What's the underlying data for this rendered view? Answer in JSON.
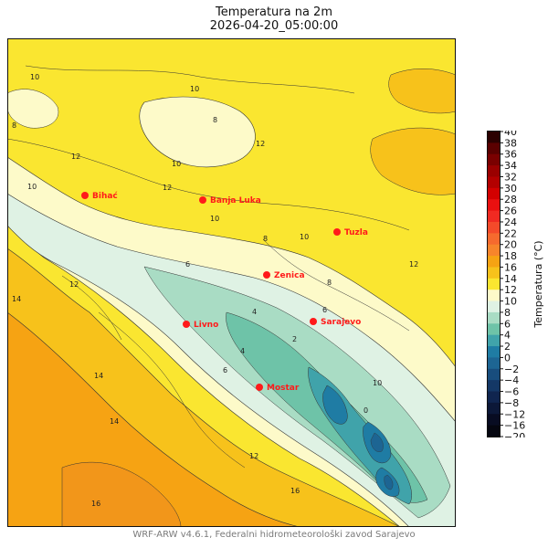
{
  "title": "Temperatura na 2m",
  "subtitle": "2026-04-20_05:00:00",
  "credit": "WRF-ARW v4.6.1, Federalni hidrometeorološki zavod Sarajevo",
  "colorbar": {
    "label": "Temperatura (°C)",
    "ticks": [
      "40",
      "38",
      "36",
      "34",
      "32",
      "30",
      "28",
      "26",
      "24",
      "22",
      "20",
      "18",
      "16",
      "14",
      "12",
      "10",
      "8",
      "6",
      "4",
      "2",
      "0",
      "−2",
      "−4",
      "−6",
      "−8",
      "−12",
      "−16",
      "−20"
    ]
  },
  "cities": [
    {
      "name": "Bihać"
    },
    {
      "name": "Banja Luka"
    },
    {
      "name": "Tuzla"
    },
    {
      "name": "Zenica"
    },
    {
      "name": "Livno"
    },
    {
      "name": "Sarajevo"
    },
    {
      "name": "Mostar"
    }
  ],
  "contour_labels": [
    "10",
    "12",
    "10",
    "8",
    "12",
    "10",
    "8",
    "12",
    "10",
    "10",
    "10",
    "12",
    "6",
    "8",
    "4",
    "2",
    "0",
    "6",
    "14",
    "14",
    "16",
    "16",
    "4",
    "8",
    "12",
    "6",
    "10",
    "14",
    "12"
  ],
  "colors": {
    "t16": "#f6a313",
    "t14": "#f7c21b",
    "t12": "#fae630",
    "t10": "#fdfac9",
    "t8": "#dff2e4",
    "t6": "#a9dcc4",
    "t4": "#6ec3a8",
    "t2": "#40a3aa",
    "t0": "#1f7ca4",
    "tm2": "#1d6593",
    "city": "#ff1a1a",
    "sea": "#f29e1c"
  }
}
